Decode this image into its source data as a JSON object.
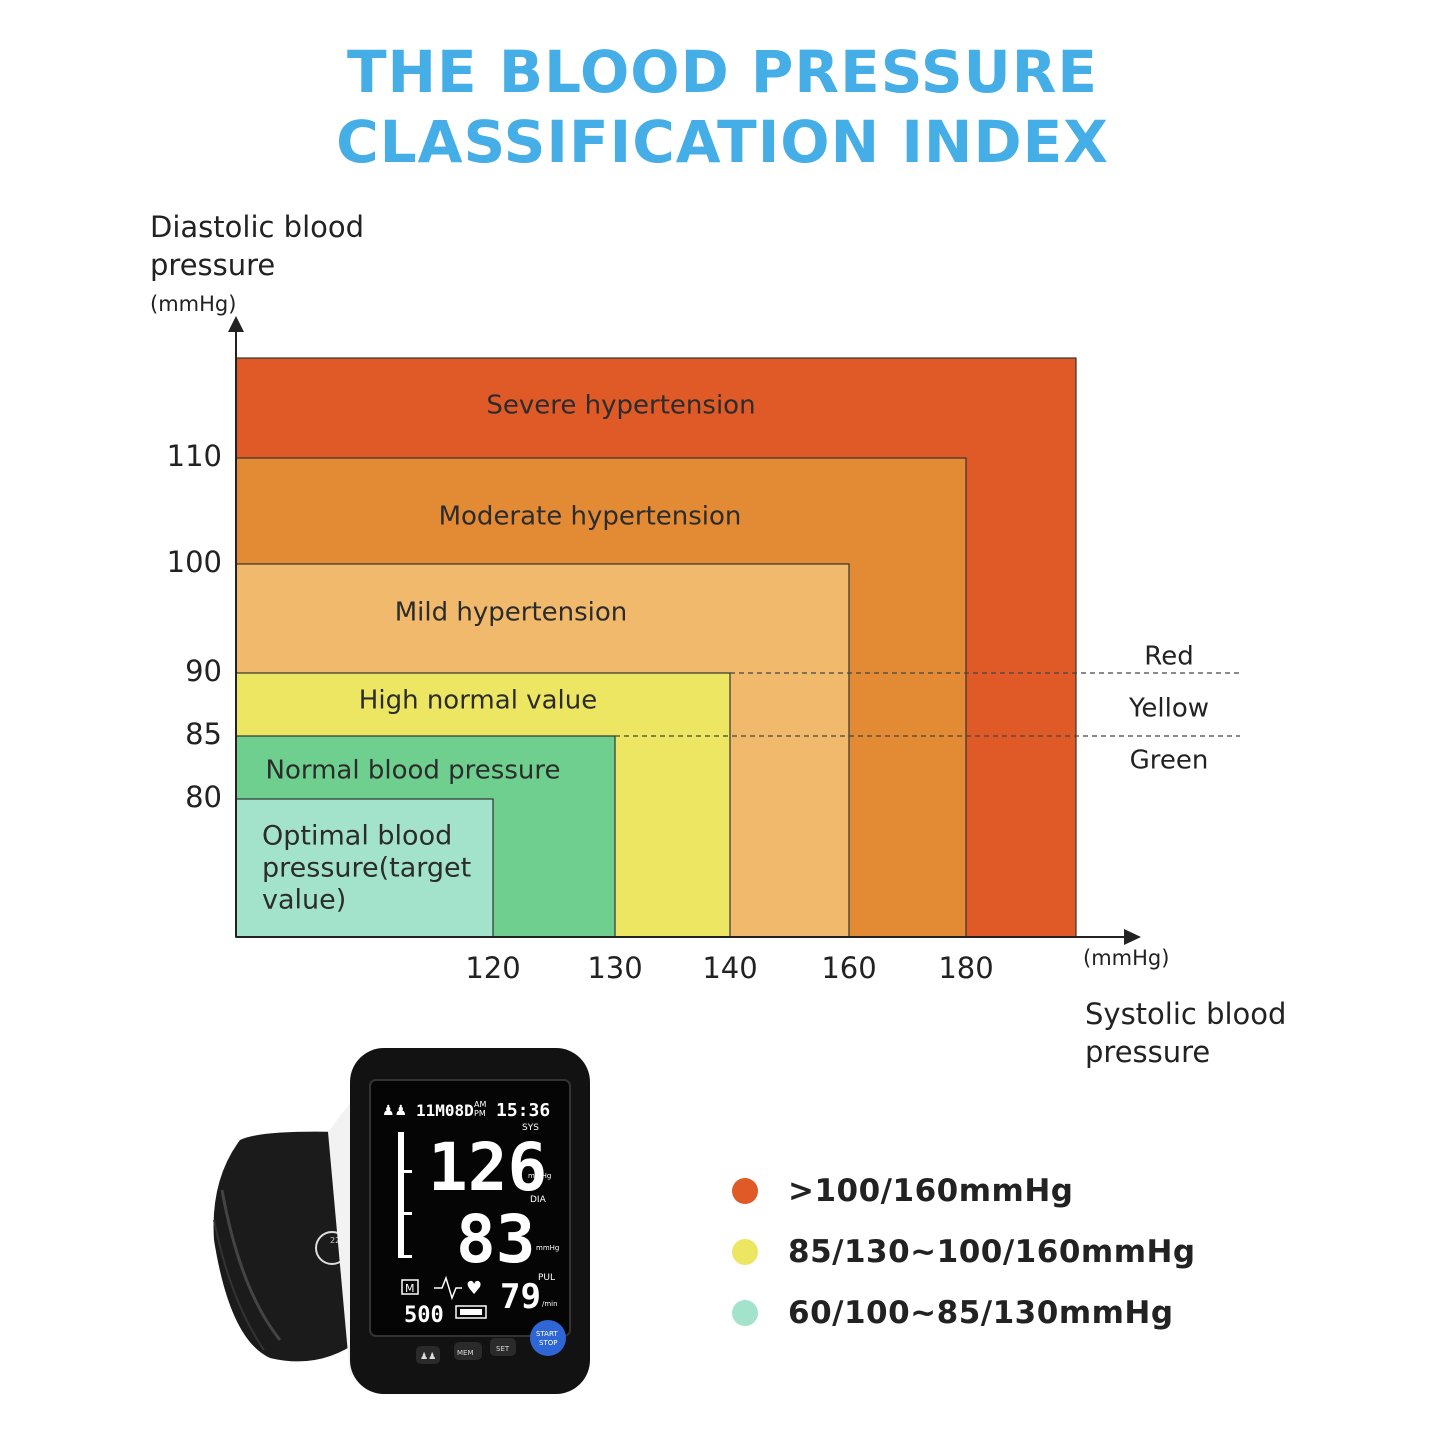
{
  "header": {
    "title_line1": "THE BLOOD PRESSURE",
    "title_line2": "CLASSIFICATION INDEX"
  },
  "chart_data": {
    "type": "area",
    "ylabel_line1": "Diastolic blood",
    "ylabel_line2": "pressure",
    "yunit": "(mmHg)",
    "xlabel_line1": "Systolic blood",
    "xlabel_line2": "pressure",
    "xunit": "(mmHg)",
    "x_ticks": [
      120,
      130,
      140,
      160,
      180
    ],
    "y_ticks": [
      80,
      85,
      90,
      100,
      110
    ],
    "zones": [
      {
        "label": "Severe hypertension",
        "systolic_max": null,
        "diastolic_max": null,
        "color": "#e05a27"
      },
      {
        "label": "Moderate hypertension",
        "systolic_max": 180,
        "diastolic_max": 110,
        "color": "#e38a35"
      },
      {
        "label": "Mild hypertension",
        "systolic_max": 160,
        "diastolic_max": 100,
        "color": "#f0b96c"
      },
      {
        "label": "High normal value",
        "systolic_max": 140,
        "diastolic_max": 90,
        "color": "#ece663"
      },
      {
        "label": "Normal blood pressure",
        "systolic_max": 130,
        "diastolic_max": 85,
        "color": "#6ecf8f"
      },
      {
        "label": "Optimal blood pressure(target value)",
        "label_lines": [
          "Optimal blood",
          "pressure(target",
          "value)"
        ],
        "systolic_max": 120,
        "diastolic_max": 80,
        "color": "#a3e3cb"
      }
    ],
    "band_labels": [
      "Red",
      "Yellow",
      "Green"
    ],
    "band_boundaries_diastolic": [
      90,
      85
    ]
  },
  "legend": {
    "items": [
      {
        "text": ">100/160mmHg",
        "color": "#e05a27"
      },
      {
        "text": "85/130~100/160mmHg",
        "color": "#ece663"
      },
      {
        "text": "60/100~85/130mmHg",
        "color": "#a3e3cb"
      }
    ]
  },
  "device": {
    "date": "11M08D",
    "ampm_top": "AM",
    "ampm_bottom": "PM",
    "time": "15:36",
    "sys_label": "SYS",
    "sys_value": "126",
    "dia_label": "DIA",
    "dia_value": "83",
    "unit_label": "mmHg",
    "pul_label": "PUL",
    "pul_value": "79",
    "pul_unit": "/min",
    "mem_count": "500",
    "mem_icon": "M",
    "btn_user": "user-switch-icon",
    "btn_mem": "MEM",
    "btn_set": "SET",
    "btn_start_line1": "START",
    "btn_start_line2": "STOP",
    "cuff_text": "22-42"
  }
}
